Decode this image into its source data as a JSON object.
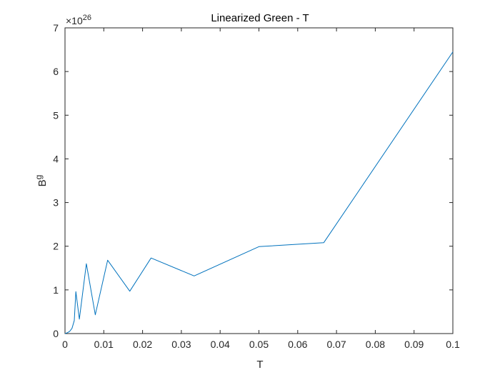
{
  "chart_data": {
    "type": "line",
    "title": "Linearized Green - T",
    "xlabel": "T",
    "ylabel_base": "B",
    "ylabel_sup": "g",
    "y_multiplier": {
      "base": "×10",
      "exponent": "26"
    },
    "xlim": [
      0,
      0.1
    ],
    "ylim": [
      0,
      7
    ],
    "x_ticks": [
      0,
      0.01,
      0.02,
      0.03,
      0.04,
      0.05,
      0.06,
      0.07,
      0.08,
      0.09,
      0.1
    ],
    "x_tick_labels": [
      "0",
      "0.01",
      "0.02",
      "0.03",
      "0.04",
      "0.05",
      "0.06",
      "0.07",
      "0.08",
      "0.09",
      "0.1"
    ],
    "y_ticks": [
      0,
      1,
      2,
      3,
      4,
      5,
      6,
      7
    ],
    "y_tick_labels": [
      "0",
      "1",
      "2",
      "3",
      "4",
      "5",
      "6",
      "7"
    ],
    "grid": false,
    "line_color": "#0072BD",
    "series": [
      {
        "x": [
          0,
          0.0006,
          0.0012,
          0.0018,
          0.0024,
          0.0028,
          0.0037,
          0.0055,
          0.0078,
          0.011,
          0.0167,
          0.0222,
          0.0333,
          0.05,
          0.0667,
          0.1
        ],
        "y": [
          0,
          0.02,
          0.05,
          0.12,
          0.3,
          0.96,
          0.33,
          1.6,
          0.43,
          1.68,
          0.97,
          1.73,
          1.32,
          1.99,
          2.08,
          6.45
        ]
      }
    ]
  }
}
